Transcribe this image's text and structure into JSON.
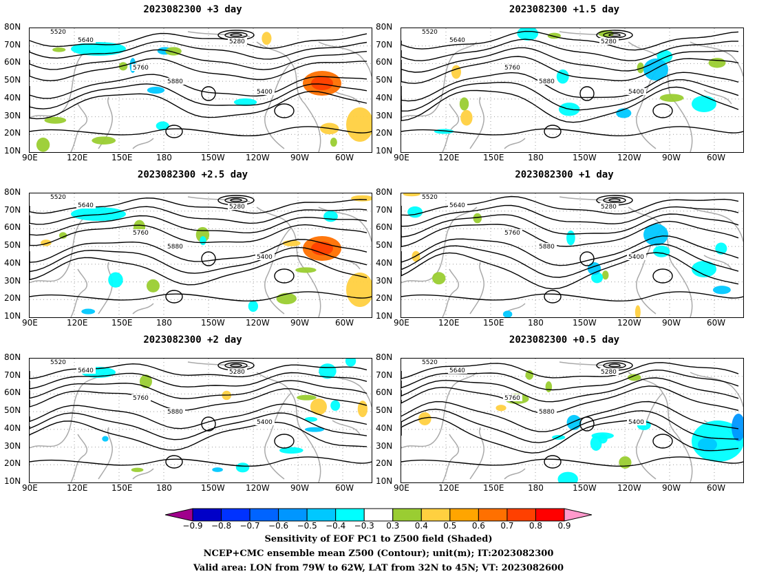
{
  "panels": [
    {
      "title": "2023082300 +3 day"
    },
    {
      "title": "2023082300 +1.5 day"
    },
    {
      "title": "2023082300 +2.5 day"
    },
    {
      "title": "2023082300 +1 day"
    },
    {
      "title": "2023082300 +2 day"
    },
    {
      "title": "2023082300 +0.5 day"
    }
  ],
  "lat_ticks": [
    "80N",
    "70N",
    "60N",
    "50N",
    "40N",
    "30N",
    "20N",
    "10N"
  ],
  "lon_ticks": [
    "90E",
    "120E",
    "150E",
    "180",
    "150W",
    "120W",
    "90W",
    "60W"
  ],
  "contour_labels": [
    "5280",
    "5400",
    "5520",
    "5640",
    "5760",
    "5880"
  ],
  "colorbar": {
    "ticks": [
      "−0.9",
      "−0.8",
      "−0.7",
      "−0.6",
      "−0.5",
      "−0.4",
      "−0.3",
      "0.3",
      "0.4",
      "0.5",
      "0.6",
      "0.7",
      "0.8",
      "0.9"
    ],
    "colors": [
      "#a0008c",
      "#0000c8",
      "#0032ff",
      "#0064ff",
      "#0096ff",
      "#00c8ff",
      "#00ffff",
      "#ffffff",
      "#9acd32",
      "#ffd040",
      "#ffa500",
      "#ff7000",
      "#ff4000",
      "#ff0000",
      "#ff99cc"
    ]
  },
  "footer": {
    "line1": "Sensitivity of EOF PC1 to Z500 field (Shaded)",
    "line2": "NCEP+CMC ensemble mean Z500 (Contour); unit(m); IT:2023082300",
    "line3": "Valid area: LON from 79W to 62W, LAT from 32N to 45N; VT: 2023082600"
  }
}
